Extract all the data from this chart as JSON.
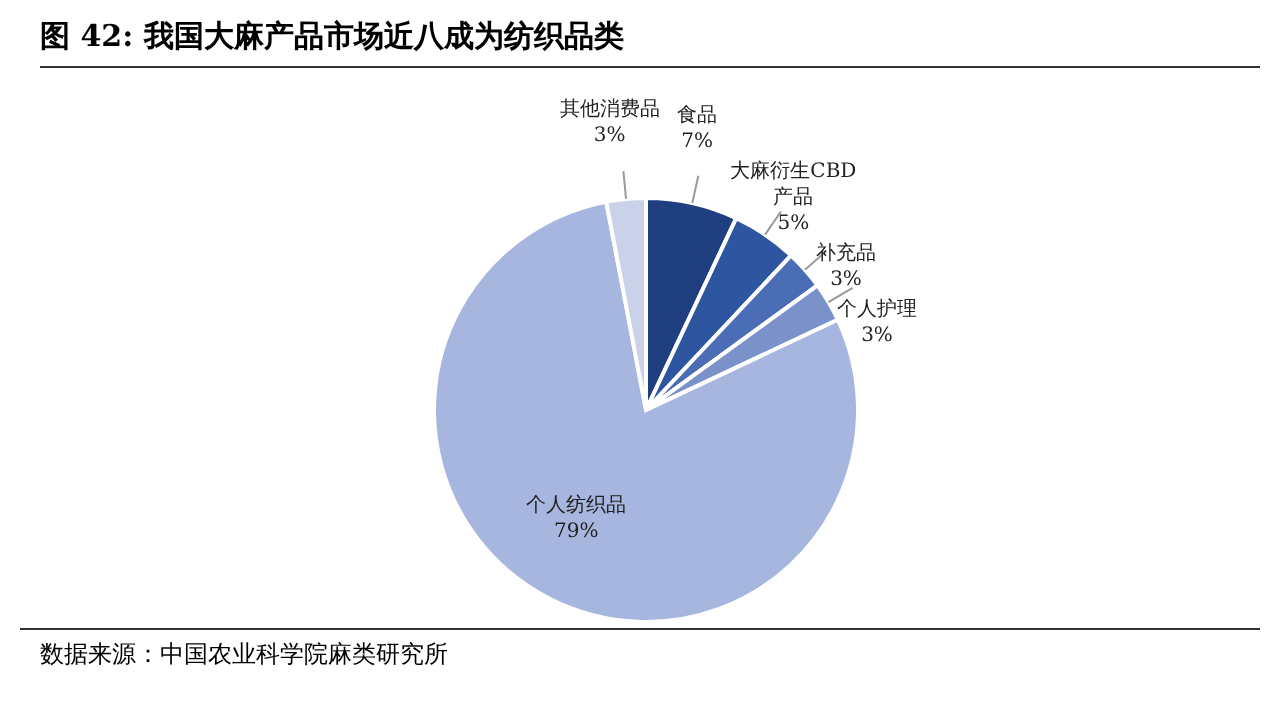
{
  "chart_data": {
    "type": "pie",
    "title": "图  42:  我国大麻产品市场近八成为纺织品类",
    "categories": [
      "食品",
      "大麻衍生CBD产品",
      "补充品",
      "个人护理",
      "个人纺织品",
      "其他消费品"
    ],
    "values": [
      7,
      5,
      3,
      3,
      79,
      3
    ],
    "value_labels": [
      "7%",
      "5%",
      "3%",
      "3%",
      "79%",
      "3%"
    ],
    "colors": [
      "#1f3f80",
      "#2d55a0",
      "#4a6db5",
      "#7a92c9",
      "#a7b6de",
      "#cad2e9"
    ],
    "annotations": [
      "数据来源：中国农业科学院麻类研究所"
    ]
  }
}
